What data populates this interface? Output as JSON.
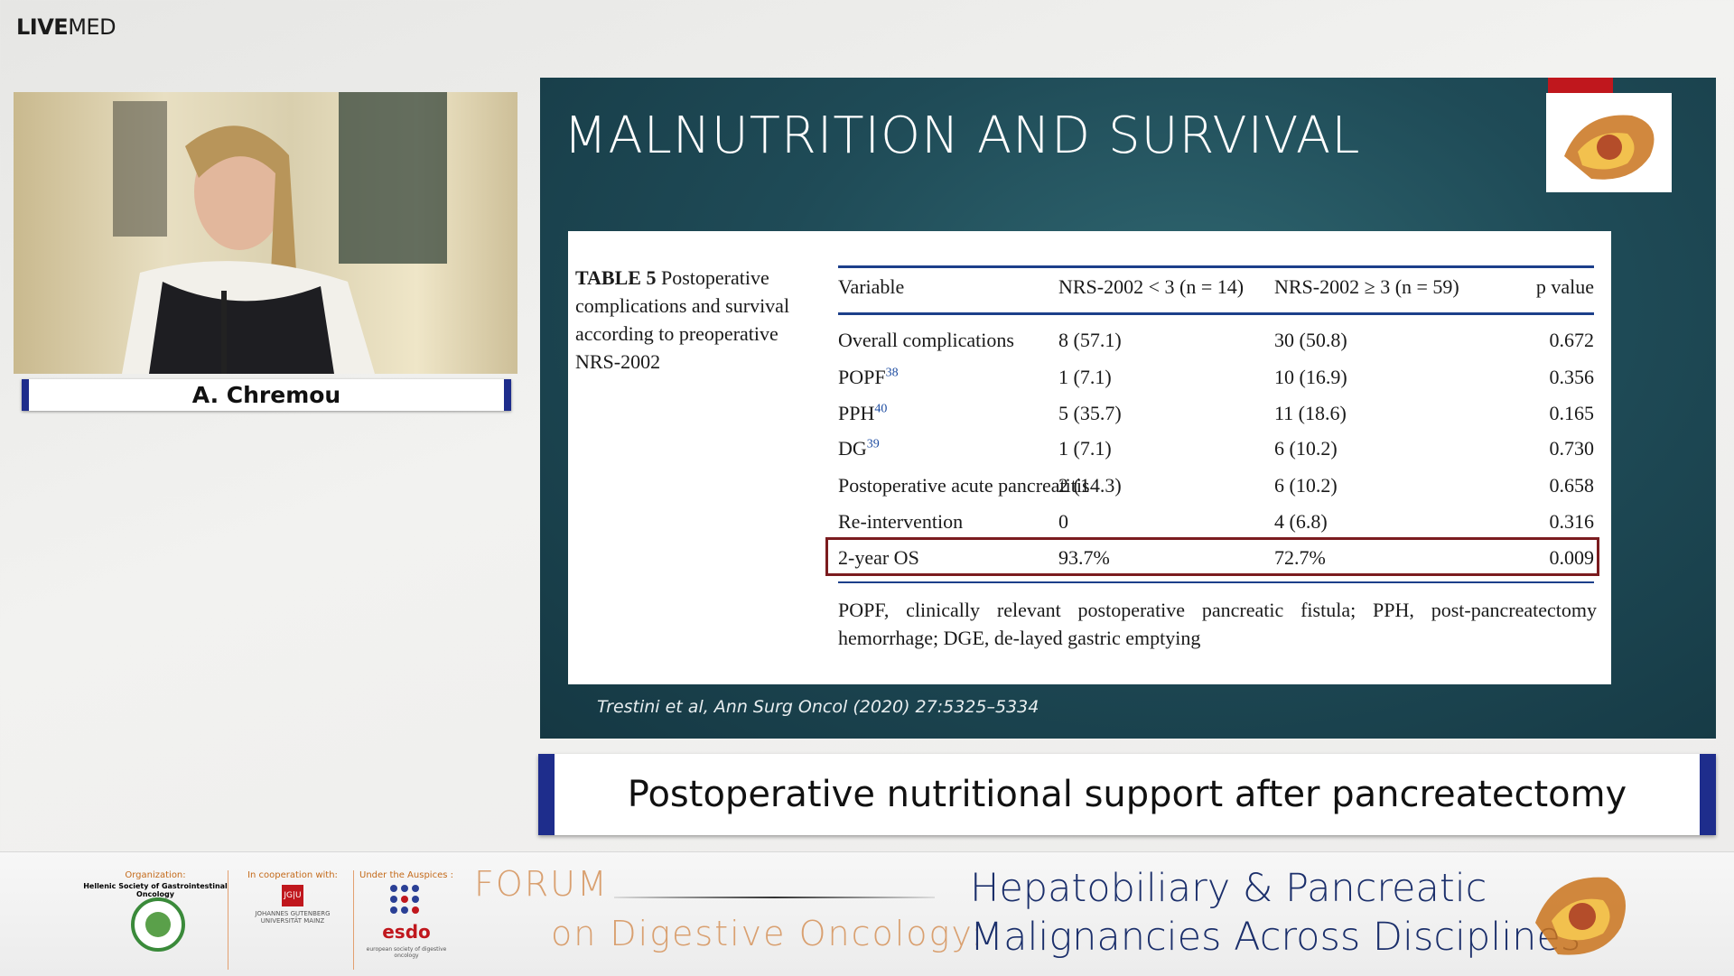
{
  "brand": {
    "live": "LIVE",
    "med": "MED"
  },
  "speaker": {
    "name": "A. Chremou"
  },
  "slide": {
    "title": "MALNUTRITION AND SURVIVAL",
    "table": {
      "label": "TABLE 5",
      "caption": "Postoperative complications and survival according to preoperative NRS-2002",
      "header": [
        "Variable",
        "NRS-2002 < 3 (n = 14)",
        "NRS-2002 ≥ 3 (n = 59)",
        "p value"
      ],
      "rows": [
        {
          "variable": "Overall complications",
          "cells": [
            "8 (57.1)",
            "30 (50.8)",
            "0.672"
          ]
        },
        {
          "variable": "POPF",
          "ref": "38",
          "cells": [
            "1 (7.1)",
            "10 (16.9)",
            "0.356"
          ]
        },
        {
          "variable": "PPH",
          "ref": "40",
          "cells": [
            "5 (35.7)",
            "11 (18.6)",
            "0.165"
          ]
        },
        {
          "variable": "DG",
          "ref": "39",
          "cells": [
            "1 (7.1)",
            "6 (10.2)",
            "0.730"
          ]
        },
        {
          "variable": "Postoperative acute pancreatitis",
          "cells": [
            "2 (14.3)",
            "6 (10.2)",
            "0.658"
          ]
        },
        {
          "variable": "Re-intervention",
          "cells": [
            "0",
            "4 (6.8)",
            "0.316"
          ]
        },
        {
          "variable": "2-year OS",
          "cells": [
            "93.7%",
            "72.7%",
            "0.009"
          ]
        }
      ],
      "footnote": "POPF, clinically relevant postoperative pancreatic fistula; PPH, post-pancreatectomy hemorrhage; DGE, de-layed gastric emptying"
    },
    "citation": "Trestini et al, Ann Surg Oncol (2020) 27:5325–5334"
  },
  "session_title": "Postoperative nutritional support after pancreatectomy",
  "footer": {
    "organization_label": "Organization:",
    "organization": "Hellenic Society of Gastrointestinal Oncology",
    "cooperation_label": "In cooperation with:",
    "jgu_mark": "JG|U",
    "university": "JOHANNES GUTENBERG UNIVERSITÄT MAINZ",
    "auspices_label": "Under the Auspices :",
    "esdo": "esdo",
    "esdo_full": "european society of digestive oncology",
    "forum_line1": "FORUM",
    "forum_line2": "on Digestive Oncology:",
    "theme_line1": "Hepatobiliary & Pancreatic",
    "theme_line2": "Malignancies Across Disciplines"
  }
}
